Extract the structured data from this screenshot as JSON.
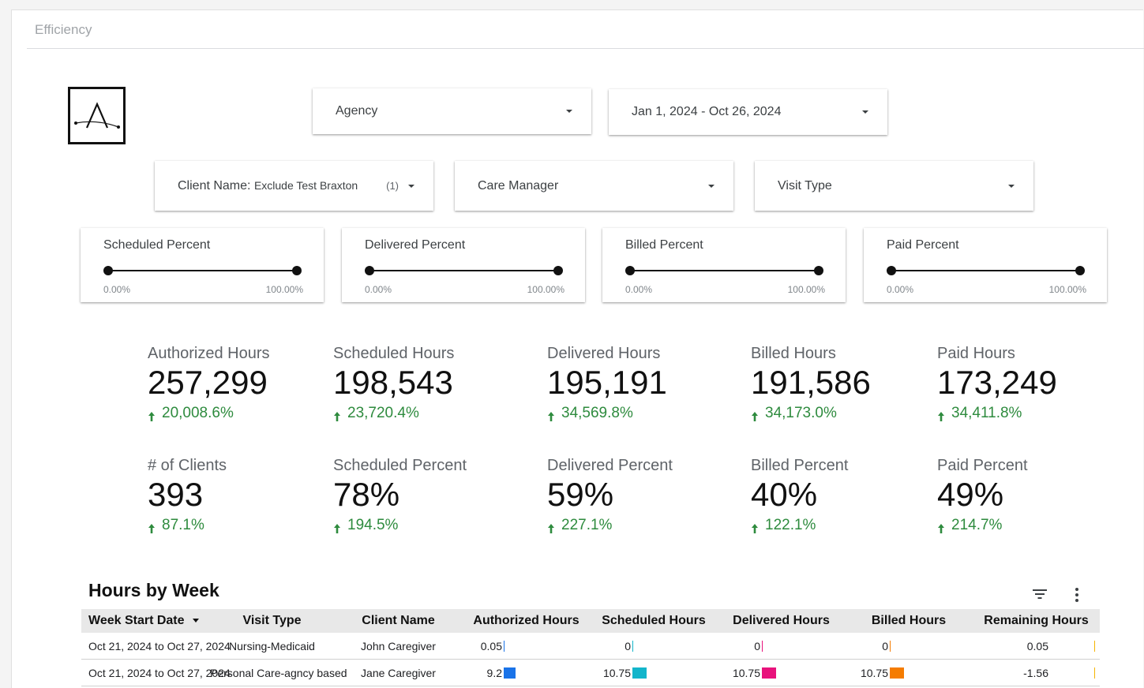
{
  "page": {
    "title": "Efficiency"
  },
  "filters": {
    "agency": {
      "label": "Agency"
    },
    "date_range": {
      "label": "Jan 1, 2024 - Oct 26, 2024"
    },
    "client_name": {
      "label": "Client Name:",
      "value": "Exclude Test Braxton",
      "count": "(1)"
    },
    "care_manager": {
      "label": "Care Manager"
    },
    "visit_type": {
      "label": "Visit Type"
    }
  },
  "sliders": [
    {
      "title": "Scheduled Percent",
      "min_label": "0.00%",
      "max_label": "100.00%",
      "min": 0,
      "max": 100
    },
    {
      "title": "Delivered Percent",
      "min_label": "0.00%",
      "max_label": "100.00%",
      "min": 0,
      "max": 100
    },
    {
      "title": "Billed Percent",
      "min_label": "0.00%",
      "max_label": "100.00%",
      "min": 0,
      "max": 100
    },
    {
      "title": "Paid Percent",
      "min_label": "0.00%",
      "max_label": "100.00%",
      "min": 0,
      "max": 100
    }
  ],
  "kpis": [
    {
      "label": "Authorized Hours",
      "value": "257,299",
      "delta": "20,008.6%"
    },
    {
      "label": "Scheduled Hours",
      "value": "198,543",
      "delta": "23,720.4%"
    },
    {
      "label": "Delivered Hours",
      "value": "195,191",
      "delta": "34,569.8%"
    },
    {
      "label": "Billed Hours",
      "value": "191,586",
      "delta": "34,173.0%"
    },
    {
      "label": "Paid Hours",
      "value": "173,249",
      "delta": "34,411.8%"
    },
    {
      "label": "# of Clients",
      "value": "393",
      "delta": "87.1%"
    },
    {
      "label": "Scheduled Percent",
      "value": "78%",
      "delta": "194.5%"
    },
    {
      "label": "Delivered Percent",
      "value": "59%",
      "delta": "227.1%"
    },
    {
      "label": "Billed Percent",
      "value": "40%",
      "delta": "122.1%"
    },
    {
      "label": "Paid Percent",
      "value": "49%",
      "delta": "214.7%"
    }
  ],
  "table": {
    "title": "Hours by Week",
    "columns": [
      "Week Start Date",
      "Visit Type",
      "Client Name",
      "Authorized Hours",
      "Scheduled Hours",
      "Delivered Hours",
      "Billed Hours",
      "Remaining Hours"
    ],
    "rows": [
      {
        "week": "Oct 21, 2024 to Oct 27, 2024",
        "visit_type": "Nursing-Medicaid",
        "client": "John Caregiver",
        "authorized": "0.05",
        "scheduled": "0",
        "delivered": "0",
        "billed": "0",
        "remaining": "0.05",
        "authorized_v": 0.05,
        "scheduled_v": 0,
        "delivered_v": 0,
        "billed_v": 0
      },
      {
        "week": "Oct 21, 2024 to Oct 27, 2024",
        "visit_type": "Personal Care-agncy based",
        "client": "Jane Caregiver",
        "authorized": "9.2",
        "scheduled": "10.75",
        "delivered": "10.75",
        "billed": "10.75",
        "remaining": "-1.56",
        "authorized_v": 9.2,
        "scheduled_v": 10.75,
        "delivered_v": 10.75,
        "billed_v": 10.75
      }
    ]
  },
  "colors": {
    "authorized": "#1a73e8",
    "scheduled": "#12b5cb",
    "delivered": "#e8127c",
    "billed": "#f57c00",
    "remaining": "#f5b400",
    "positive": "#2e8b3e"
  },
  "icons": {
    "logo": "logo-a-icon",
    "filter": "filter-icon",
    "more": "more-vert-icon",
    "sort": "sort-desc-icon"
  }
}
